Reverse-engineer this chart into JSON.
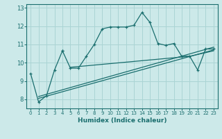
{
  "xlabel": "Humidex (Indice chaleur)",
  "ylabel": "",
  "bg_color": "#cce9e9",
  "grid_color": "#aad4d4",
  "line_color": "#1a6e6e",
  "xlim": [
    -0.5,
    23.5
  ],
  "ylim": [
    7.5,
    13.2
  ],
  "xticks": [
    0,
    1,
    2,
    3,
    4,
    5,
    6,
    7,
    8,
    9,
    10,
    11,
    12,
    13,
    14,
    15,
    16,
    17,
    18,
    19,
    20,
    21,
    22,
    23
  ],
  "yticks": [
    8,
    9,
    10,
    11,
    12,
    13
  ],
  "series1_x": [
    0,
    1,
    2,
    3,
    4,
    4,
    5,
    6,
    7,
    8,
    9,
    10,
    11,
    12,
    13,
    14,
    15,
    16,
    17,
    18,
    19,
    20,
    21,
    22,
    23
  ],
  "series1_y": [
    9.4,
    7.85,
    8.2,
    9.6,
    10.65,
    10.65,
    9.7,
    9.7,
    10.35,
    11.0,
    11.85,
    11.95,
    11.95,
    11.95,
    12.05,
    12.75,
    12.2,
    11.05,
    10.95,
    11.05,
    10.35,
    10.35,
    9.6,
    10.75,
    10.75
  ],
  "series2_x": [
    1,
    23
  ],
  "series2_y": [
    8.05,
    10.7
  ],
  "series3_x": [
    1,
    23
  ],
  "series3_y": [
    8.15,
    10.85
  ],
  "series4_x": [
    5,
    20,
    23
  ],
  "series4_y": [
    9.75,
    10.35,
    10.65
  ]
}
